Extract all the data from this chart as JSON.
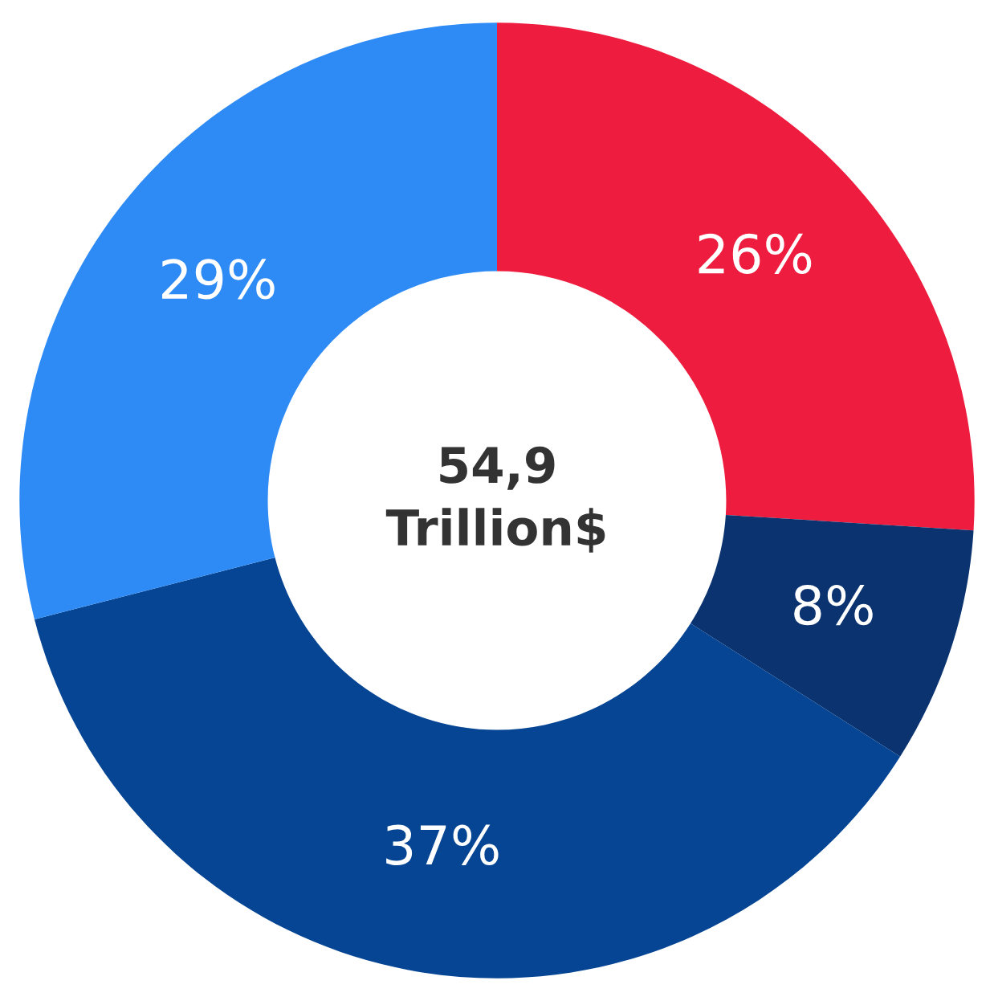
{
  "chart_data": {
    "type": "donut",
    "categories": [
      null,
      null,
      null,
      null
    ],
    "values": [
      26,
      8,
      37,
      29
    ],
    "colors": [
      "#ee1c3e",
      "#0a3370",
      "#054594",
      "#2e8bf5"
    ],
    "value_labels": [
      "26%",
      "8%",
      "37%",
      "29%"
    ],
    "annotations": [
      "54,9\nTrillion$"
    ],
    "legend": false
  }
}
